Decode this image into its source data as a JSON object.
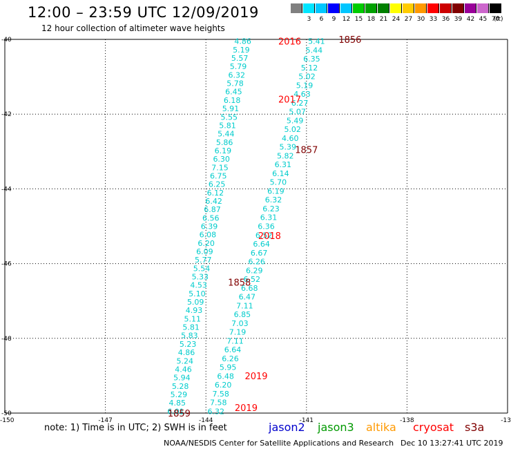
{
  "title": "12:00 – 23:59 UTC 12/09/2019",
  "subtitle": "12 hour collection of altimeter wave heights",
  "scale": {
    "unit": "(ft)",
    "bins": [
      {
        "label": "",
        "color": "#808080"
      },
      {
        "label": "3",
        "color": "#00e5ff"
      },
      {
        "label": "6",
        "color": "#00c8ff"
      },
      {
        "label": "9",
        "color": "#0000ff"
      },
      {
        "label": "12",
        "color": "#00c6ff"
      },
      {
        "label": "15",
        "color": "#00cc00"
      },
      {
        "label": "18",
        "color": "#00a000"
      },
      {
        "label": "21",
        "color": "#008000"
      },
      {
        "label": "24",
        "color": "#ffff00"
      },
      {
        "label": "27",
        "color": "#ffcc00"
      },
      {
        "label": "30",
        "color": "#ff9900"
      },
      {
        "label": "33",
        "color": "#ff0000"
      },
      {
        "label": "36",
        "color": "#cc0000"
      },
      {
        "label": "39",
        "color": "#800000"
      },
      {
        "label": "42",
        "color": "#990099"
      },
      {
        "label": "45",
        "color": "#cc66cc"
      },
      {
        "label": "70",
        "color": "#000000"
      }
    ]
  },
  "axes": {
    "lon_ticks": [
      "-150",
      "-147",
      "-144",
      "-141",
      "-138",
      "-13"
    ],
    "lat_ticks": [
      "-40",
      "-42",
      "-44",
      "-46",
      "-48",
      "-50"
    ]
  },
  "tracks": [
    {
      "color": "#00cccc",
      "start": [
        -142.9,
        -40.05
      ],
      "end": [
        -144.9,
        -49.95
      ],
      "values": [
        "4.86",
        "5.19",
        "5.57",
        "5.79",
        "6.32",
        "5.78",
        "6.45",
        "6.18",
        "5.91",
        "5.55",
        "5.81",
        "5.44",
        "5.86",
        "6.19",
        "6.30",
        "7.15",
        "6.75",
        "6.25",
        "6.12",
        "6.42",
        "6.87",
        "6.56",
        "6.39",
        "6.08",
        "6.20",
        "6.09",
        "5.77",
        "5.54",
        "5.33",
        "4.53",
        "5.10",
        "5.09",
        "4.93",
        "5.11",
        "5.81",
        "5.83",
        "5.23",
        "4.86",
        "5.24",
        "4.46",
        "5.94",
        "5.28",
        "5.29",
        "4.85",
        "6.01"
      ]
    },
    {
      "color": "#00cccc",
      "start": [
        -140.7,
        -40.05
      ],
      "end": [
        -143.7,
        -49.95
      ],
      "values": [
        "5.41",
        "5.44",
        "6.35",
        "5.12",
        "5.02",
        "5.19",
        "4.63",
        "6.27",
        "5.07",
        "5.49",
        "5.02",
        "4.60",
        "5.39",
        "5.82",
        "6.31",
        "6.14",
        "5.70",
        "6.19",
        "6.32",
        "6.23",
        "6.31",
        "6.36",
        "6.52",
        "6.64",
        "6.67",
        "6.26",
        "6.29",
        "6.52",
        "6.68",
        "6.47",
        "7.11",
        "6.85",
        "7.03",
        "7.19",
        "7.11",
        "6.64",
        "6.26",
        "5.95",
        "6.48",
        "6.20",
        "7.58",
        "7.58",
        "6.32"
      ]
    }
  ],
  "time_labels": [
    {
      "text": "2016",
      "color": "#ff0000",
      "lon": -141.5,
      "lat": -40.05
    },
    {
      "text": "1856",
      "color": "#800000",
      "lon": -139.7,
      "lat": -40.0
    },
    {
      "text": "2017",
      "color": "#ff0000",
      "lon": -141.5,
      "lat": -41.6
    },
    {
      "text": "1857",
      "color": "#800000",
      "lon": -141.0,
      "lat": -42.95
    },
    {
      "text": "2018",
      "color": "#ff0000",
      "lon": -142.1,
      "lat": -45.25
    },
    {
      "text": "1858",
      "color": "#800000",
      "lon": -143.0,
      "lat": -46.5
    },
    {
      "text": "2019",
      "color": "#ff0000",
      "lon": -142.5,
      "lat": -49.0
    },
    {
      "text": "2019",
      "color": "#ff0000",
      "lon": -142.8,
      "lat": -49.85
    },
    {
      "text": "1859",
      "color": "#800000",
      "lon": -144.8,
      "lat": -50.0
    }
  ],
  "note": "note:  1) Time is in UTC;  2) SWH is in feet",
  "satellites": [
    {
      "name": "jason2",
      "color": "#0000cc"
    },
    {
      "name": "jason3",
      "color": "#009900"
    },
    {
      "name": "altika",
      "color": "#ff9900"
    },
    {
      "name": "cryosat",
      "color": "#ff0000"
    },
    {
      "name": "s3a",
      "color": "#800000"
    }
  ],
  "footer_left": "NOAA/NESDIS Center for Satellite Applications and Research",
  "footer_right": "Dec 10 13:27:41 UTC 2019"
}
